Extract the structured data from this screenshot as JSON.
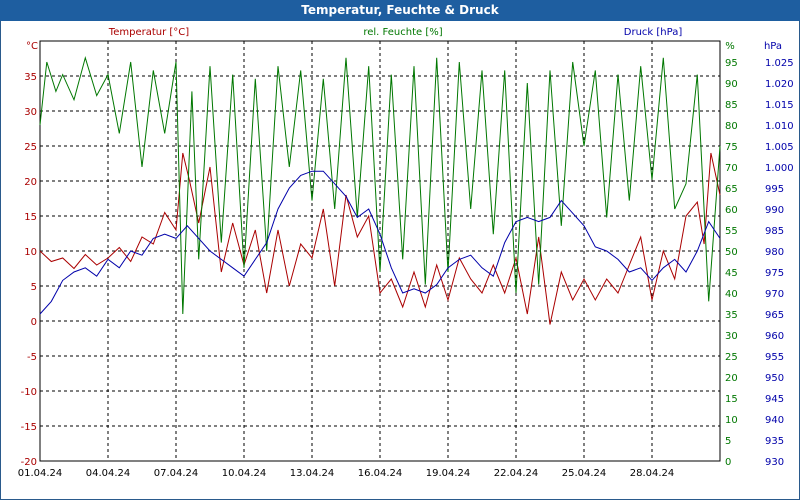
{
  "chart_data": {
    "type": "line",
    "title": "Temperatur, Feuchte & Druck",
    "x_tick_labels": [
      "01.04.24",
      "04.04.24",
      "07.04.24",
      "10.04.24",
      "13.04.24",
      "16.04.24",
      "19.04.24",
      "22.04.24",
      "25.04.24",
      "28.04.24"
    ],
    "x_range_days": [
      0,
      30
    ],
    "axes": {
      "temperature": {
        "unit": "°C",
        "label": "Temperatur [°C]",
        "range": [
          -20,
          40
        ],
        "ticks": [
          -20,
          -15,
          -10,
          -5,
          0,
          5,
          10,
          15,
          20,
          25,
          30,
          35
        ],
        "color": "#aa0000"
      },
      "humidity": {
        "unit": "%",
        "label": "rel. Feuchte [%]",
        "range": [
          0,
          100
        ],
        "ticks": [
          0,
          5,
          10,
          15,
          20,
          25,
          30,
          35,
          40,
          45,
          50,
          55,
          60,
          65,
          70,
          75,
          80,
          85,
          90,
          95
        ],
        "color": "#007700"
      },
      "pressure": {
        "unit": "hPa",
        "label": "Druck [hPa]",
        "range": [
          930,
          1030
        ],
        "ticks": [
          "930",
          "935",
          "940",
          "945",
          "950",
          "955",
          "960",
          "965",
          "970",
          "975",
          "980",
          "985",
          "990",
          "995",
          "1.000",
          "1.005",
          "1.010",
          "1.015",
          "1.020",
          "1.025"
        ],
        "color": "#0000aa"
      }
    },
    "grid": true,
    "series": [
      {
        "name": "Temperatur",
        "axis": "temperature",
        "color": "#aa0000",
        "x": [
          0,
          0.5,
          1,
          1.5,
          2,
          2.5,
          3,
          3.5,
          4,
          4.5,
          5,
          5.5,
          6,
          6.3,
          6.6,
          7,
          7.5,
          8,
          8.5,
          9,
          9.5,
          10,
          10.5,
          11,
          11.5,
          12,
          12.5,
          13,
          13.5,
          14,
          14.5,
          15,
          15.5,
          16,
          16.5,
          17,
          17.5,
          18,
          18.5,
          19,
          19.5,
          20,
          20.5,
          21,
          21.5,
          22,
          22.5,
          23,
          23.5,
          24,
          24.5,
          25,
          25.5,
          26,
          26.5,
          27,
          27.5,
          28,
          28.5,
          29,
          29.3,
          29.6,
          30
        ],
        "values": [
          10,
          8.5,
          9,
          7.5,
          9.5,
          8,
          9,
          10.5,
          8.5,
          12,
          11,
          15.5,
          13,
          24,
          20,
          14,
          22,
          7,
          14,
          8,
          13,
          4,
          13,
          5,
          11,
          9,
          16,
          5,
          18,
          12,
          15,
          4,
          6,
          2,
          7,
          2,
          8,
          3,
          9,
          6,
          4,
          8,
          4,
          9,
          1,
          12,
          -0.5,
          7,
          3,
          6,
          3,
          6,
          4,
          8,
          12,
          3,
          10,
          6,
          15,
          17,
          11,
          24,
          18
        ]
      },
      {
        "name": "rel. Feuchte",
        "axis": "humidity",
        "color": "#007700",
        "x": [
          0,
          0.3,
          0.7,
          1,
          1.5,
          2,
          2.5,
          3,
          3.5,
          4,
          4.5,
          5,
          5.5,
          6,
          6.3,
          6.7,
          7,
          7.5,
          8,
          8.5,
          9,
          9.5,
          10,
          10.5,
          11,
          11.5,
          12,
          12.5,
          13,
          13.5,
          14,
          14.5,
          15,
          15.5,
          16,
          16.5,
          17,
          17.5,
          18,
          18.5,
          19,
          19.5,
          20,
          20.5,
          21,
          21.5,
          22,
          22.5,
          23,
          23.5,
          24,
          24.5,
          25,
          25.5,
          26,
          26.5,
          27,
          27.5,
          28,
          28.5,
          29,
          29.5,
          30
        ],
        "values": [
          80,
          95,
          88,
          92,
          86,
          96,
          87,
          92,
          78,
          95,
          70,
          93,
          78,
          95,
          35,
          88,
          48,
          94,
          52,
          92,
          46,
          91,
          50,
          94,
          70,
          93,
          62,
          91,
          60,
          96,
          58,
          94,
          45,
          92,
          48,
          94,
          42,
          96,
          45,
          95,
          60,
          93,
          54,
          93,
          40,
          90,
          42,
          93,
          56,
          95,
          75,
          93,
          58,
          92,
          62,
          94,
          67,
          96,
          60,
          66,
          92,
          38,
          75
        ]
      },
      {
        "name": "Druck",
        "axis": "pressure",
        "color": "#0000aa",
        "x": [
          0,
          0.5,
          1,
          1.5,
          2,
          2.5,
          3,
          3.5,
          4,
          4.5,
          5,
          5.5,
          6,
          6.5,
          7,
          7.5,
          8,
          8.5,
          9,
          9.5,
          10,
          10.5,
          11,
          11.5,
          12,
          12.5,
          13,
          13.5,
          14,
          14.5,
          15,
          15.5,
          16,
          16.5,
          17,
          17.5,
          18,
          18.5,
          19,
          19.5,
          20,
          20.5,
          21,
          21.5,
          22,
          22.5,
          23,
          23.5,
          24,
          24.5,
          25,
          25.5,
          26,
          26.5,
          27,
          27.5,
          28,
          28.5,
          29,
          29.5,
          30
        ],
        "values": [
          965,
          968,
          973,
          975,
          976,
          974,
          978,
          976,
          980,
          979,
          983,
          984,
          983,
          986,
          983,
          980,
          978,
          976,
          974,
          978,
          982,
          990,
          995,
          998,
          999,
          999,
          996,
          993,
          988,
          990,
          984,
          976,
          970,
          971,
          970,
          972,
          976,
          978,
          979,
          976,
          974,
          982,
          987,
          988,
          987,
          988,
          992,
          989,
          986,
          981,
          980,
          978,
          975,
          976,
          973,
          976,
          978,
          975,
          980,
          987,
          983
        ]
      }
    ]
  }
}
